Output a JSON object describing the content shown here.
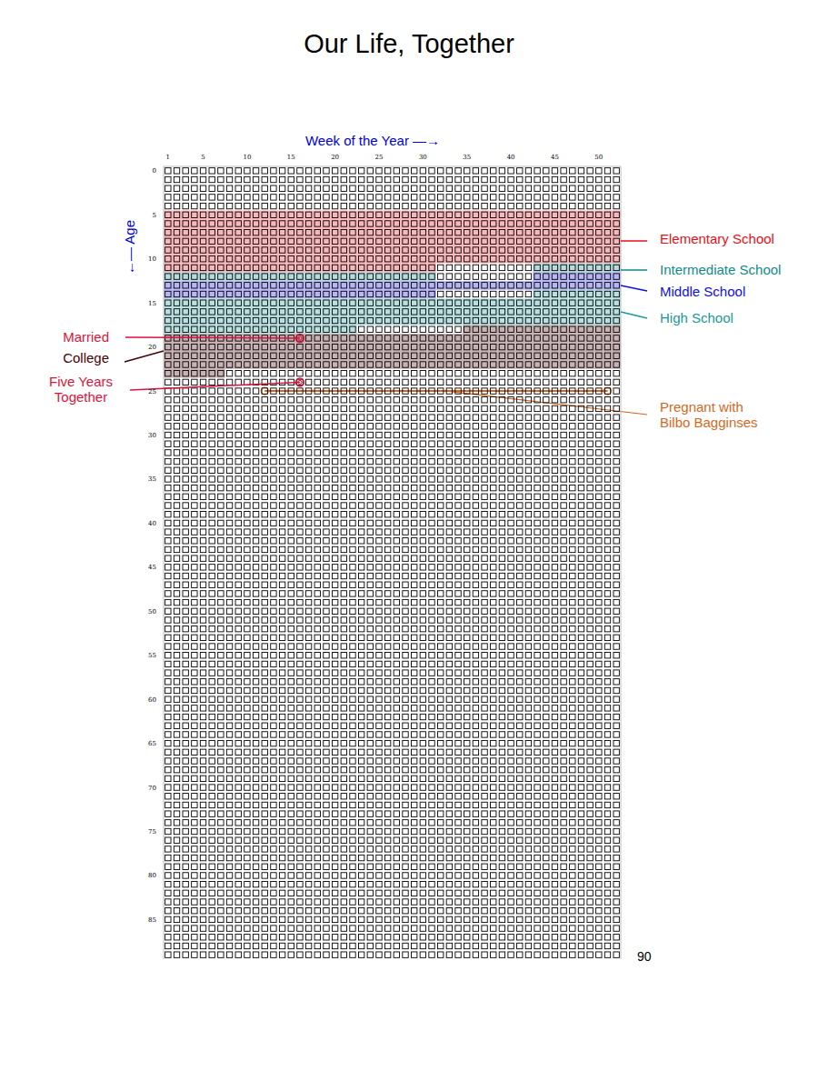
{
  "chart_data": {
    "type": "life_grid",
    "title": "Our Life, Together",
    "x_label": "Week of the Year —→",
    "y_label": "←— Age",
    "weeks": 52,
    "years": 90,
    "xlim": [
      0.5,
      52.5
    ],
    "xticks": [
      1,
      5,
      10,
      15,
      20,
      25,
      30,
      35,
      40,
      45,
      50
    ],
    "ylim": [
      0,
      90
    ],
    "yticks": [
      0,
      5,
      10,
      15,
      20,
      25,
      30,
      35,
      40,
      45,
      50,
      55,
      60,
      65,
      70,
      75,
      80,
      85
    ],
    "y2lim": [
      0,
      90
    ],
    "y2ticks": [
      90
    ],
    "bands": [
      {
        "label": "Elementary School",
        "start": [
          5,
          1
        ],
        "end": [
          11,
          31
        ],
        "color": "#e8101a"
      },
      {
        "label": "Intermediate School",
        "start": [
          11,
          43
        ],
        "end": [
          12,
          31
        ],
        "color": "#138a8a"
      },
      {
        "label": "Middle School",
        "start": [
          12,
          43
        ],
        "end": [
          14,
          31
        ],
        "color": "#1010e0"
      },
      {
        "label": "High School",
        "start": [
          14,
          43
        ],
        "end": [
          18,
          22
        ],
        "color": "#1a9a9a"
      },
      {
        "label": "College",
        "start": [
          18,
          35
        ],
        "end": [
          23,
          7
        ],
        "color": "#4a0008"
      }
    ],
    "events": [
      {
        "label": "Married",
        "age": 19,
        "week": 16,
        "color": "#dc143c"
      },
      {
        "label": "Five Years\nTogether",
        "age": 24,
        "week": 16,
        "color": "#dc143c"
      }
    ],
    "spans": [
      {
        "label": "Pregnant with\nBilbo Bagginses",
        "age": 25,
        "start_week": 12,
        "end_week": 51,
        "color": "#d2691e"
      }
    ]
  }
}
